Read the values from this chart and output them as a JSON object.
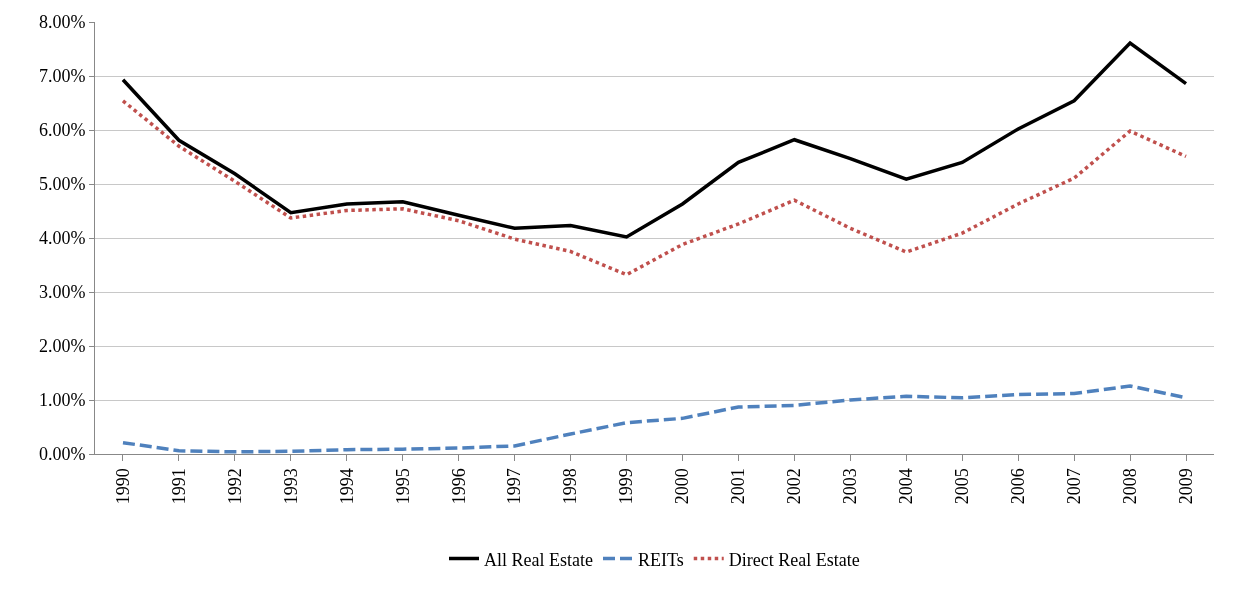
{
  "chart_data": {
    "type": "line",
    "categories": [
      "1990",
      "1991",
      "1992",
      "1993",
      "1994",
      "1995",
      "1996",
      "1997",
      "1998",
      "1999",
      "2000",
      "2001",
      "2002",
      "2003",
      "2004",
      "2005",
      "2006",
      "2007",
      "2008",
      "2009"
    ],
    "series": [
      {
        "name": "All Real Estate",
        "color": "#000000",
        "line_style": "solid",
        "values": [
          6.93,
          5.81,
          5.19,
          4.47,
          4.63,
          4.67,
          4.42,
          4.18,
          4.23,
          4.02,
          4.63,
          5.4,
          5.82,
          5.47,
          5.09,
          5.4,
          6.02,
          6.54,
          7.61,
          6.86
        ]
      },
      {
        "name": "REITs",
        "color": "#4f81bd",
        "line_style": "dashed",
        "values": [
          0.21,
          0.06,
          0.04,
          0.05,
          0.08,
          0.09,
          0.11,
          0.15,
          0.37,
          0.58,
          0.66,
          0.87,
          0.9,
          1.0,
          1.07,
          1.04,
          1.1,
          1.12,
          1.26,
          1.04
        ]
      },
      {
        "name": "Direct Real Estate",
        "color": "#c0504d",
        "line_style": "dotted",
        "values": [
          6.54,
          5.7,
          5.05,
          4.37,
          4.51,
          4.54,
          4.32,
          3.98,
          3.75,
          3.32,
          3.88,
          4.26,
          4.7,
          4.18,
          3.74,
          4.09,
          4.63,
          5.11,
          5.98,
          5.51
        ]
      }
    ],
    "ylim": [
      0,
      8
    ],
    "yticks": [
      {
        "value": 0,
        "label": "0.00%"
      },
      {
        "value": 1,
        "label": "1.00%"
      },
      {
        "value": 2,
        "label": "2.00%"
      },
      {
        "value": 3,
        "label": "3.00%"
      },
      {
        "value": 4,
        "label": "4.00%"
      },
      {
        "value": 5,
        "label": "5.00%"
      },
      {
        "value": 6,
        "label": "6.00%"
      },
      {
        "value": 7,
        "label": "7.00%"
      },
      {
        "value": 8,
        "label": "8.00%"
      }
    ],
    "grid": "y",
    "legend": "bottom",
    "marker": "none"
  }
}
